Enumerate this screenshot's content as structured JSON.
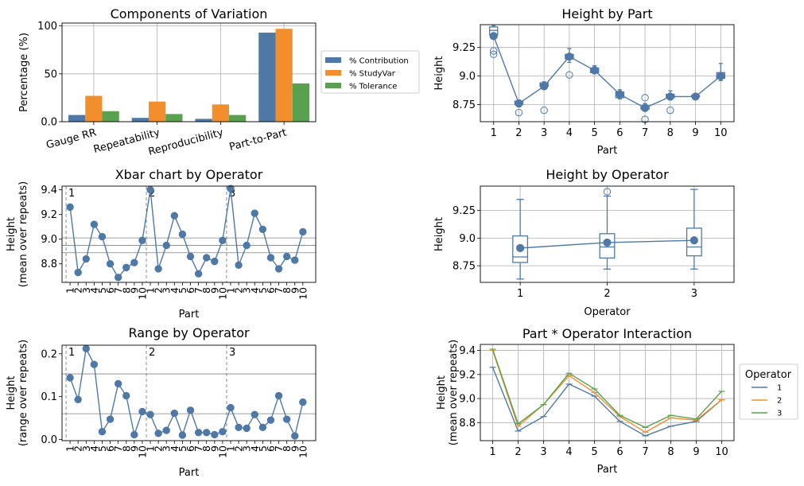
{
  "colors": {
    "blue": "#4e79a7",
    "orange": "#f28e2b",
    "green": "#59a14f",
    "grid": "#b0b0b0",
    "divider": "#7f7f7f"
  },
  "chart_data": [
    {
      "id": "components",
      "type": "bar",
      "title": "Components of Variation",
      "xlabel": "",
      "ylabel": "Percentage (%)",
      "ylim": [
        0,
        103
      ],
      "yticks": [
        0,
        50,
        100
      ],
      "categories": [
        "Gauge RR",
        "Repeatability",
        "Reproducibility",
        "Part-to-Part"
      ],
      "legend_position": "right",
      "series": [
        {
          "name": "% Contribution",
          "color": "#4e79a7",
          "values": [
            7,
            4,
            3,
            93
          ]
        },
        {
          "name": "% StudyVar",
          "color": "#f28e2b",
          "values": [
            27,
            21,
            18,
            97
          ]
        },
        {
          "name": "% Tolerance",
          "color": "#59a14f",
          "values": [
            11,
            8,
            7,
            40
          ]
        }
      ]
    },
    {
      "id": "height_by_part",
      "type": "box",
      "title": "Height by Part",
      "xlabel": "Part",
      "ylabel": "Height",
      "ylim": [
        8.6,
        9.45
      ],
      "yticks": [
        8.75,
        9.0,
        9.25
      ],
      "categories": [
        "1",
        "2",
        "3",
        "4",
        "5",
        "6",
        "7",
        "8",
        "9",
        "10"
      ],
      "means": [
        9.35,
        8.76,
        8.91,
        9.17,
        9.05,
        8.84,
        8.72,
        8.82,
        8.82,
        9.0
      ],
      "boxes": [
        {
          "whislo": 9.35,
          "q1": 9.36,
          "med": 9.4,
          "q3": 9.43,
          "whishi": 9.44,
          "fliers": [
            9.19,
            9.22
          ]
        },
        {
          "whislo": 8.73,
          "q1": 8.75,
          "med": 8.77,
          "q3": 8.78,
          "whishi": 8.79,
          "fliers": [
            8.68
          ]
        },
        {
          "whislo": 8.91,
          "q1": 8.91,
          "med": 8.93,
          "q3": 8.94,
          "whishi": 8.95,
          "fliers": [
            8.7
          ]
        },
        {
          "whislo": 9.12,
          "q1": 9.15,
          "med": 9.17,
          "q3": 9.19,
          "whishi": 9.24,
          "fliers": [
            9.01
          ]
        },
        {
          "whislo": 9.02,
          "q1": 9.03,
          "med": 9.05,
          "q3": 9.07,
          "whishi": 9.09,
          "fliers": []
        },
        {
          "whislo": 8.8,
          "q1": 8.81,
          "med": 8.84,
          "q3": 8.86,
          "whishi": 8.88,
          "fliers": []
        },
        {
          "whislo": 8.7,
          "q1": 8.71,
          "med": 8.72,
          "q3": 8.74,
          "whishi": 8.76,
          "fliers": [
            8.62,
            8.81
          ]
        },
        {
          "whislo": 8.79,
          "q1": 8.81,
          "med": 8.83,
          "q3": 8.84,
          "whishi": 8.87,
          "fliers": [
            8.7
          ]
        },
        {
          "whislo": 8.81,
          "q1": 8.82,
          "med": 8.82,
          "q3": 8.83,
          "whishi": 8.83,
          "fliers": []
        },
        {
          "whislo": 8.96,
          "q1": 8.98,
          "med": 9.0,
          "q3": 9.03,
          "whishi": 9.11,
          "fliers": []
        }
      ]
    },
    {
      "id": "xbar",
      "type": "line",
      "title": "Xbar chart by Operator",
      "xlabel": "Part",
      "ylabel": "Height",
      "ylabel2": "(mean over repeats)",
      "ylim": [
        8.65,
        9.43
      ],
      "yticks": [
        8.8,
        9.0,
        9.2,
        9.4
      ],
      "categories": [
        "1",
        "2",
        "3",
        "4",
        "5",
        "6",
        "7",
        "8",
        "9",
        "10"
      ],
      "groups": [
        "1",
        "2",
        "3"
      ],
      "series": [
        {
          "name": "1",
          "values": [
            9.26,
            8.73,
            8.84,
            9.12,
            9.02,
            8.8,
            8.69,
            8.77,
            8.81,
            8.99
          ]
        },
        {
          "name": "2",
          "values": [
            9.4,
            8.76,
            8.95,
            9.19,
            9.04,
            8.86,
            8.72,
            8.85,
            8.82,
            8.99
          ]
        },
        {
          "name": "3",
          "values": [
            9.41,
            8.79,
            8.95,
            9.21,
            9.08,
            8.85,
            8.76,
            8.86,
            8.83,
            9.06
          ]
        }
      ],
      "hlines": [
        8.89,
        8.95,
        9.01
      ]
    },
    {
      "id": "height_by_operator",
      "type": "box",
      "title": "Height by Operator",
      "xlabel": "Operator",
      "ylabel": "Height",
      "ylim": [
        8.6,
        9.47
      ],
      "yticks": [
        8.75,
        9.0,
        9.25
      ],
      "categories": [
        "1",
        "2",
        "3"
      ],
      "means": [
        8.91,
        8.96,
        8.98
      ],
      "boxes": [
        {
          "whislo": 8.63,
          "q1": 8.78,
          "med": 8.83,
          "q3": 9.02,
          "whishi": 9.35,
          "fliers": []
        },
        {
          "whislo": 8.72,
          "q1": 8.82,
          "med": 8.92,
          "q3": 9.04,
          "whishi": 9.38,
          "fliers": [
            9.42
          ]
        },
        {
          "whislo": 8.72,
          "q1": 8.84,
          "med": 8.92,
          "q3": 9.09,
          "whishi": 9.44,
          "fliers": []
        }
      ]
    },
    {
      "id": "range",
      "type": "line",
      "title": "Range by Operator",
      "xlabel": "Part",
      "ylabel": "Height",
      "ylabel2": "(range over repeats)",
      "ylim": [
        -0.003,
        0.22
      ],
      "yticks": [
        0.0,
        0.1,
        0.2
      ],
      "categories": [
        "1",
        "2",
        "3",
        "4",
        "5",
        "6",
        "7",
        "8",
        "9",
        "10"
      ],
      "groups": [
        "1",
        "2",
        "3"
      ],
      "series": [
        {
          "name": "1",
          "values": [
            0.144,
            0.093,
            0.212,
            0.175,
            0.018,
            0.047,
            0.13,
            0.102,
            0.011,
            0.065
          ]
        },
        {
          "name": "2",
          "values": [
            0.058,
            0.014,
            0.021,
            0.061,
            0.01,
            0.068,
            0.016,
            0.016,
            0.011,
            0.018
          ]
        },
        {
          "name": "3",
          "values": [
            0.074,
            0.028,
            0.026,
            0.058,
            0.028,
            0.045,
            0.102,
            0.047,
            0.008,
            0.087
          ]
        }
      ],
      "hlines": [
        0.06,
        0.153
      ]
    },
    {
      "id": "interaction",
      "type": "line",
      "title": "Part * Operator Interaction",
      "xlabel": "Part",
      "ylabel": "Height",
      "ylabel2": "(mean over repeats)",
      "ylim": [
        8.65,
        9.45
      ],
      "yticks": [
        8.8,
        9.0,
        9.2,
        9.4
      ],
      "categories": [
        "1",
        "2",
        "3",
        "4",
        "5",
        "6",
        "7",
        "8",
        "9",
        "10"
      ],
      "legend_title": "Operator",
      "legend_position": "right",
      "series": [
        {
          "name": "1",
          "color": "#4e79a7",
          "values": [
            9.26,
            8.73,
            8.85,
            9.12,
            9.02,
            8.81,
            8.69,
            8.77,
            8.81,
            8.99
          ]
        },
        {
          "name": "2",
          "color": "#f28e2b",
          "values": [
            9.4,
            8.77,
            8.95,
            9.19,
            9.05,
            8.85,
            8.72,
            8.84,
            8.82,
            8.99
          ]
        },
        {
          "name": "3",
          "color": "#59a14f",
          "values": [
            9.41,
            8.79,
            8.95,
            9.21,
            9.08,
            8.86,
            8.76,
            8.86,
            8.83,
            9.06
          ]
        }
      ]
    }
  ]
}
